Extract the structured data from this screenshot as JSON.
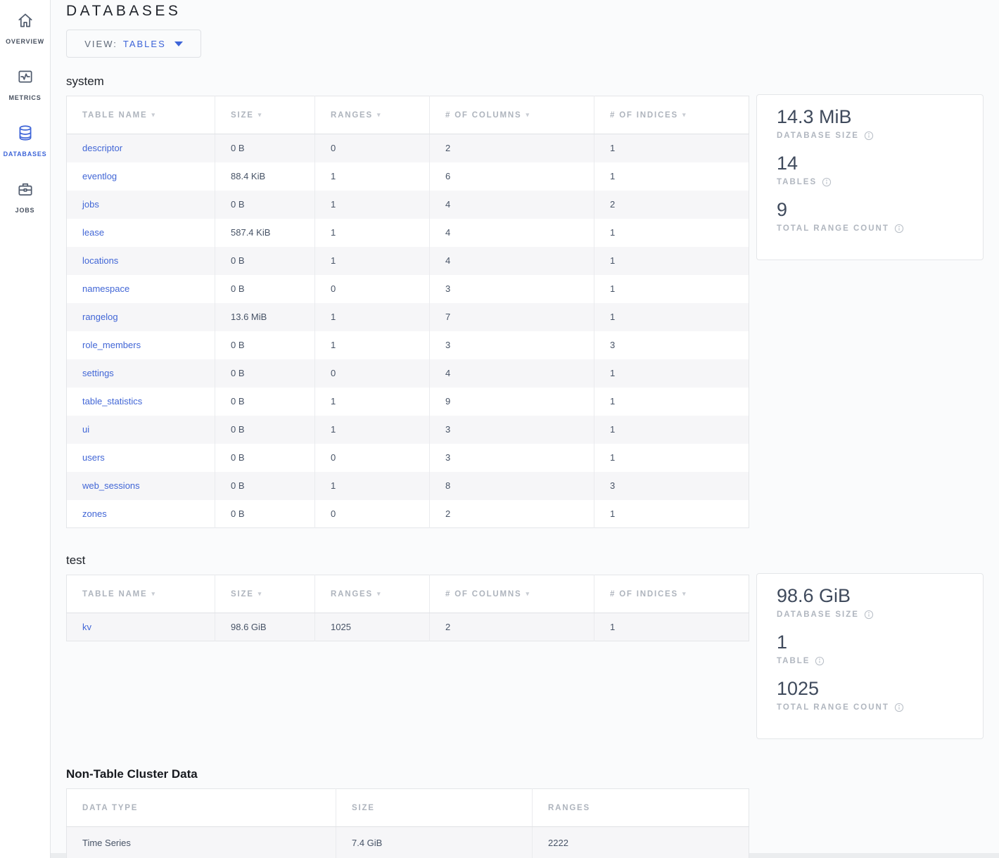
{
  "sidebar": {
    "items": [
      {
        "label": "OVERVIEW",
        "icon": "home-icon",
        "active": false
      },
      {
        "label": "METRICS",
        "icon": "metrics-icon",
        "active": false
      },
      {
        "label": "DATABASES",
        "icon": "databases-icon",
        "active": true
      },
      {
        "label": "JOBS",
        "icon": "jobs-icon",
        "active": false
      }
    ]
  },
  "page": {
    "title": "DATABASES"
  },
  "view_selector": {
    "label": "VIEW:",
    "value": "TABLES"
  },
  "table_columns": {
    "db": [
      "TABLE NAME",
      "SIZE",
      "RANGES",
      "# OF COLUMNS",
      "# OF INDICES"
    ],
    "non_table": [
      "DATA TYPE",
      "SIZE",
      "RANGES"
    ]
  },
  "databases": [
    {
      "name": "system",
      "rows": [
        [
          "descriptor",
          "0 B",
          "0",
          "2",
          "1"
        ],
        [
          "eventlog",
          "88.4 KiB",
          "1",
          "6",
          "1"
        ],
        [
          "jobs",
          "0 B",
          "1",
          "4",
          "2"
        ],
        [
          "lease",
          "587.4 KiB",
          "1",
          "4",
          "1"
        ],
        [
          "locations",
          "0 B",
          "1",
          "4",
          "1"
        ],
        [
          "namespace",
          "0 B",
          "0",
          "3",
          "1"
        ],
        [
          "rangelog",
          "13.6 MiB",
          "1",
          "7",
          "1"
        ],
        [
          "role_members",
          "0 B",
          "1",
          "3",
          "3"
        ],
        [
          "settings",
          "0 B",
          "0",
          "4",
          "1"
        ],
        [
          "table_statistics",
          "0 B",
          "1",
          "9",
          "1"
        ],
        [
          "ui",
          "0 B",
          "1",
          "3",
          "1"
        ],
        [
          "users",
          "0 B",
          "0",
          "3",
          "1"
        ],
        [
          "web_sessions",
          "0 B",
          "1",
          "8",
          "3"
        ],
        [
          "zones",
          "0 B",
          "0",
          "2",
          "1"
        ]
      ],
      "summary": {
        "size_value": "14.3 MiB",
        "size_label": "DATABASE SIZE",
        "tables_value": "14",
        "tables_label": "TABLES",
        "ranges_value": "9",
        "ranges_label": "TOTAL RANGE COUNT"
      }
    },
    {
      "name": "test",
      "rows": [
        [
          "kv",
          "98.6 GiB",
          "1025",
          "2",
          "1"
        ]
      ],
      "summary": {
        "size_value": "98.6 GiB",
        "size_label": "DATABASE SIZE",
        "tables_value": "1",
        "tables_label": "TABLE",
        "ranges_value": "1025",
        "ranges_label": "TOTAL RANGE COUNT"
      }
    }
  ],
  "non_table": {
    "title": "Non-Table Cluster Data",
    "rows": [
      [
        "Time Series",
        "7.4 GiB",
        "2222"
      ]
    ]
  },
  "colors": {
    "accent_blue": "#3d64d8",
    "link_blue": "#4166d6",
    "header_gray": "#aeb4bd",
    "value_slate": "#475366",
    "row_stripe": "#f6f6f8"
  }
}
